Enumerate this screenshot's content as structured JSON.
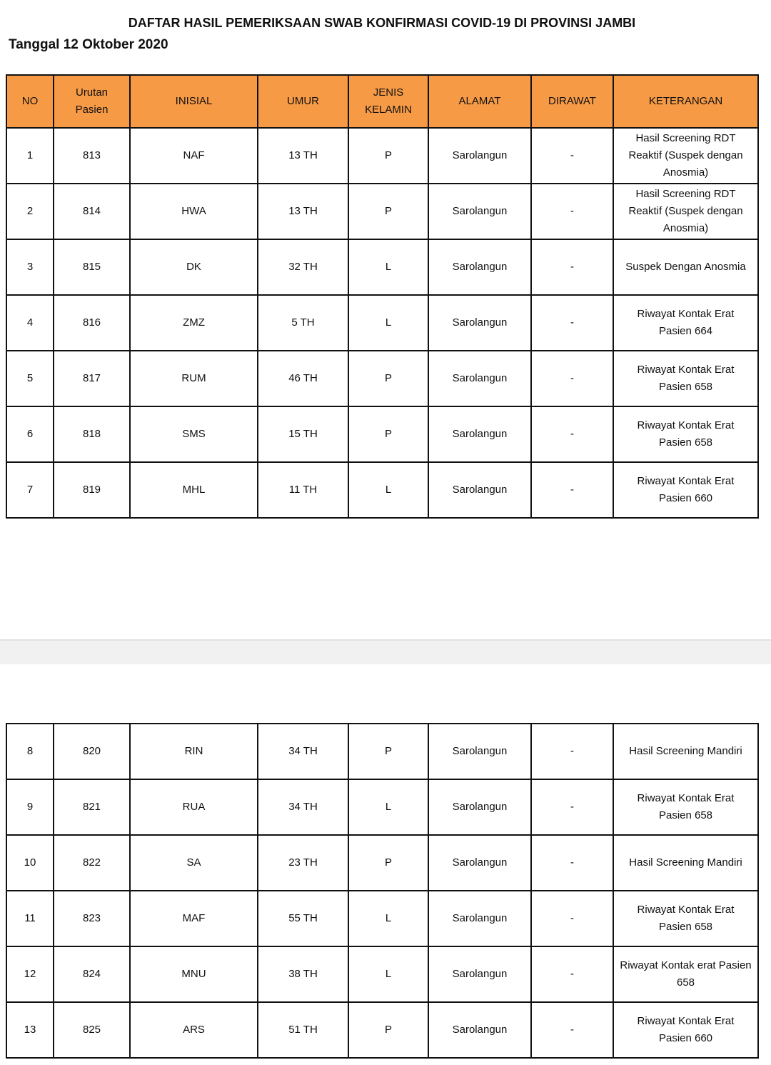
{
  "title": "DAFTAR HASIL PEMERIKSAAN SWAB KONFIRMASI COVID-19 DI PROVINSI JAMBI",
  "date": "Tanggal 12 Oktober 2020",
  "header_color": "#f79a46",
  "columns": [
    "NO",
    "Urutan Pasien",
    "INISIAL",
    "UMUR",
    "JENIS KELAMIN",
    "ALAMAT",
    "DIRAWAT",
    "KETERANGAN"
  ],
  "rows": [
    [
      "1",
      "813",
      "NAF",
      "13 TH",
      "P",
      "Sarolangun",
      "-",
      "Hasil Screening RDT Reaktif (Suspek dengan Anosmia)"
    ],
    [
      "2",
      "814",
      "HWA",
      "13 TH",
      "P",
      "Sarolangun",
      "-",
      "Hasil Screening RDT Reaktif (Suspek dengan Anosmia)"
    ],
    [
      "3",
      "815",
      "DK",
      "32 TH",
      "L",
      "Sarolangun",
      "-",
      "Suspek Dengan Anosmia"
    ],
    [
      "4",
      "816",
      "ZMZ",
      "5 TH",
      "L",
      "Sarolangun",
      "-",
      "Riwayat Kontak Erat Pasien 664"
    ],
    [
      "5",
      "817",
      "RUM",
      "46 TH",
      "P",
      "Sarolangun",
      "-",
      "Riwayat Kontak Erat Pasien 658"
    ],
    [
      "6",
      "818",
      "SMS",
      "15 TH",
      "P",
      "Sarolangun",
      "-",
      "Riwayat Kontak Erat Pasien 658"
    ],
    [
      "7",
      "819",
      "MHL",
      "11  TH",
      "L",
      "Sarolangun",
      "-",
      "Riwayat Kontak Erat Pasien 660"
    ],
    [
      "8",
      "820",
      "RIN",
      "34 TH",
      "P",
      "Sarolangun",
      "-",
      "Hasil Screening Mandiri"
    ],
    [
      "9",
      "821",
      "RUA",
      "34 TH",
      "L",
      "Sarolangun",
      "-",
      "Riwayat Kontak Erat Pasien 658"
    ],
    [
      "10",
      "822",
      "SA",
      "23 TH",
      "P",
      "Sarolangun",
      "-",
      "Hasil Screening Mandiri"
    ],
    [
      "11",
      "823",
      "MAF",
      "55 TH",
      "L",
      "Sarolangun",
      "-",
      "Riwayat Kontak Erat Pasien 658"
    ],
    [
      "12",
      "824",
      "MNU",
      "38 TH",
      "L",
      "Sarolangun",
      "-",
      "Riwayat Kontak erat Pasien 658"
    ],
    [
      "13",
      "825",
      "ARS",
      "51 TH",
      "P",
      "Sarolangun",
      "-",
      "Riwayat Kontak Erat Pasien 660"
    ]
  ]
}
